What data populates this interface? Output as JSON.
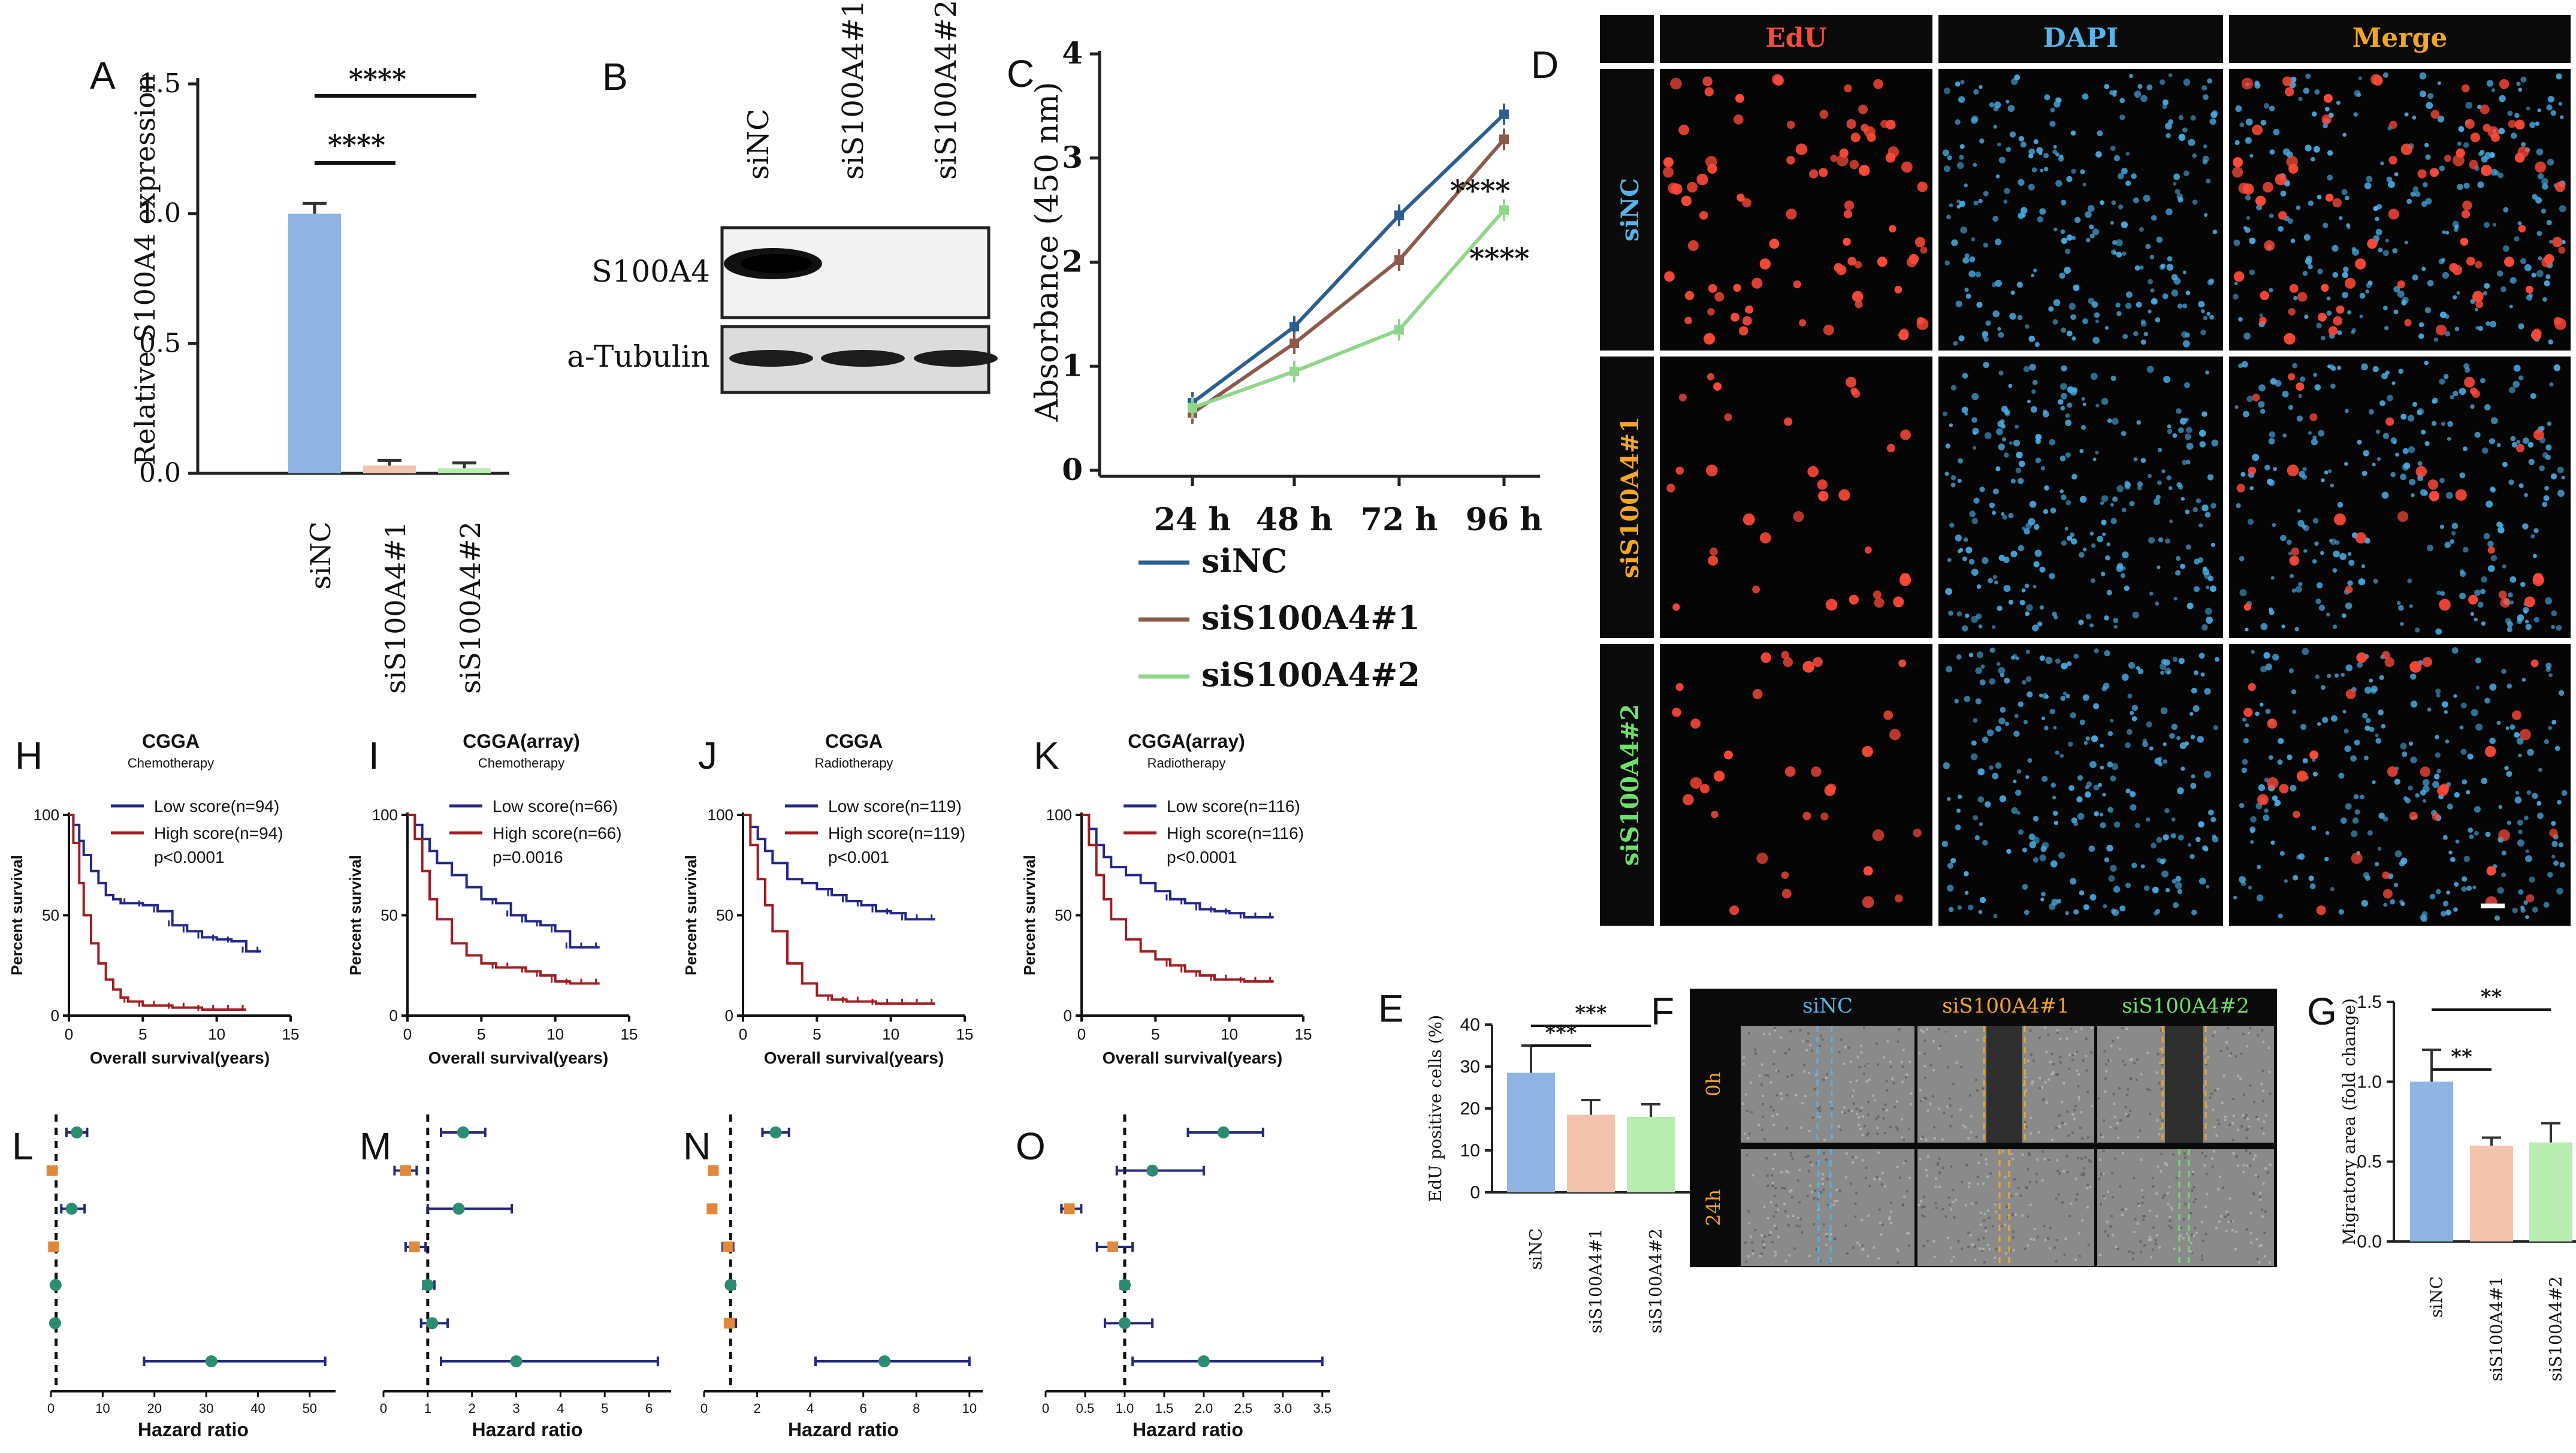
{
  "figure": {
    "colors": {
      "blue": "#2c5f8f",
      "brown": "#8b5a4a",
      "green": "#8fd68a",
      "bar_blue": "#8fb3e3",
      "bar_peach": "#f2c4ae",
      "bar_green": "#b8ecb0",
      "km_low": "#23288a",
      "km_high": "#a11d22",
      "forest_green": "#2b8c72",
      "forest_orange": "#e0893a",
      "img_red": "#ff4a3a",
      "img_blue": "#4aaee8",
      "label_blue": "#56b4e9",
      "label_orange": "#f5a623",
      "label_green": "#6ee06a"
    }
  },
  "panels": {
    "A": {
      "letter": "A",
      "ylabel": "Relative S100A4 expression",
      "yticks": [
        "0.0",
        "0.5",
        "1.0",
        "1.5"
      ],
      "sig": [
        "****",
        "****"
      ]
    },
    "B": {
      "letter": "B",
      "lanes": [
        "siNC",
        "siS100A4#1",
        "siS100A4#2"
      ],
      "rows": [
        "S100A4",
        "a-Tubulin"
      ]
    },
    "C": {
      "letter": "C",
      "ylabel": "Absorbance (450 nm)",
      "yticks": [
        "0",
        "1",
        "2",
        "3",
        "4"
      ],
      "sig": [
        "****",
        "****"
      ],
      "legend": [
        "siNC",
        "siS100A4#1",
        "siS100A4#2"
      ]
    },
    "D": {
      "letter": "D",
      "cols": [
        "EdU",
        "DAPI",
        "Merge"
      ],
      "rows": [
        "siNC",
        "siS100A4#1",
        "siS100A4#2"
      ]
    },
    "E": {
      "letter": "E",
      "ylabel": "EdU positive cells (%)",
      "yticks": [
        "0",
        "10",
        "20",
        "30",
        "40"
      ],
      "sig": [
        "***",
        "***"
      ]
    },
    "F": {
      "letter": "F",
      "cols": [
        "siNC",
        "siS100A4#1",
        "siS100A4#2"
      ],
      "rows": [
        "0h",
        "24h"
      ]
    },
    "G": {
      "letter": "G",
      "ylabel": "Migratory area (fold change)",
      "yticks": [
        "0.0",
        "0.5",
        "1.0",
        "1.5"
      ],
      "sig": [
        "**",
        "**"
      ]
    },
    "km": [
      {
        "letter": "H",
        "title": "CGGA",
        "subtitle": "Chemotherapy",
        "low": "Low score(n=94)",
        "high": "High score(n=94)",
        "p": "p<0.0001"
      },
      {
        "letter": "I",
        "title": "CGGA(array)",
        "subtitle": "Chemotherapy",
        "low": "Low score(n=66)",
        "high": "High score(n=66)",
        "p": "p=0.0016"
      },
      {
        "letter": "J",
        "title": "CGGA",
        "subtitle": "Radiotherapy",
        "low": "Low score(n=119)",
        "high": "High score(n=119)",
        "p": "p<0.001"
      },
      {
        "letter": "K",
        "title": "CGGA(array)",
        "subtitle": "Radiotherapy",
        "low": "Low score(n=116)",
        "high": "High score(n=116)",
        "p": "p<0.0001"
      }
    ],
    "km_common": {
      "ylabel": "Percent survival",
      "xlabel": "Overall survival(years)",
      "yticks": [
        "0",
        "50",
        "100"
      ],
      "xticks": [
        "0",
        "5",
        "10",
        "15"
      ]
    },
    "forest": [
      {
        "letter": "L",
        "xticks": [
          "0",
          "10",
          "20",
          "30",
          "40",
          "50"
        ]
      },
      {
        "letter": "M",
        "xticks": [
          "0",
          "1",
          "2",
          "3",
          "4",
          "5",
          "6"
        ]
      },
      {
        "letter": "N",
        "xticks": [
          "0",
          "2",
          "4",
          "6",
          "8",
          "10"
        ]
      },
      {
        "letter": "O",
        "xticks": [
          "0",
          "0.5",
          "1.0",
          "1.5",
          "2.0",
          "2.5",
          "3.0",
          "3.5"
        ]
      }
    ],
    "forest_common": {
      "xlabel": "Hazard ratio"
    }
  },
  "chart_data": [
    {
      "id": "A",
      "type": "bar",
      "categories": [
        "siNC",
        "siS100A4#1",
        "siS100A4#2"
      ],
      "values": [
        1.0,
        0.03,
        0.02
      ],
      "errors": [
        0.04,
        0.02,
        0.02
      ],
      "ylabel": "Relative S100A4 expression",
      "ylim": [
        0,
        1.5
      ]
    },
    {
      "id": "C",
      "type": "line",
      "x": [
        "24 h",
        "48 h",
        "72 h",
        "96 h"
      ],
      "xlabel": "",
      "ylabel": "Absorbance (450 nm)",
      "ylim": [
        0,
        4
      ],
      "series": [
        {
          "name": "siNC",
          "values": [
            0.65,
            1.38,
            2.45,
            3.42
          ]
        },
        {
          "name": "siS100A4#1",
          "values": [
            0.55,
            1.22,
            2.02,
            3.18
          ]
        },
        {
          "name": "siS100A4#2",
          "values": [
            0.6,
            0.95,
            1.35,
            2.5
          ]
        }
      ]
    },
    {
      "id": "E",
      "type": "bar",
      "categories": [
        "siNC",
        "siS100A4#1",
        "siS100A4#2"
      ],
      "values": [
        28.5,
        18.5,
        18.0
      ],
      "errors": [
        6.5,
        3.5,
        3.0
      ],
      "ylabel": "EdU positive cells (%)",
      "ylim": [
        0,
        40
      ]
    },
    {
      "id": "G",
      "type": "bar",
      "categories": [
        "siNC",
        "siS100A4#1",
        "siS100A4#2"
      ],
      "values": [
        1.0,
        0.6,
        0.62
      ],
      "errors": [
        0.2,
        0.05,
        0.12
      ],
      "ylabel": "Migratory area (fold change)",
      "ylim": [
        0,
        1.5
      ]
    },
    {
      "id": "H",
      "type": "line",
      "xlabel": "Overall survival(years)",
      "ylabel": "Percent survival",
      "xlim": [
        0,
        15
      ],
      "ylim": [
        0,
        100
      ],
      "series": [
        {
          "name": "Low score(n=94)",
          "x": [
            0,
            0.3,
            0.7,
            1,
            1.5,
            2,
            2.5,
            3,
            3.5,
            4,
            5,
            6,
            7,
            8,
            9,
            10,
            11,
            12,
            13
          ],
          "y": [
            100,
            95,
            87,
            80,
            72,
            66,
            60,
            58,
            56,
            56,
            55,
            52,
            45,
            42,
            39,
            38,
            37,
            32,
            32
          ]
        },
        {
          "name": "High score(n=94)",
          "x": [
            0,
            0.3,
            0.7,
            1,
            1.5,
            2,
            2.5,
            3,
            3.5,
            4,
            5,
            6,
            7,
            8,
            9,
            10,
            11,
            12
          ],
          "y": [
            100,
            86,
            66,
            50,
            36,
            26,
            18,
            13,
            9,
            7,
            5,
            5,
            4,
            4,
            3,
            3,
            3,
            3
          ]
        }
      ]
    },
    {
      "id": "I",
      "type": "line",
      "xlabel": "Overall survival(years)",
      "ylabel": "Percent survival",
      "xlim": [
        0,
        15
      ],
      "ylim": [
        0,
        100
      ],
      "series": [
        {
          "name": "Low score(n=66)",
          "x": [
            0,
            0.5,
            1,
            1.5,
            2,
            3,
            4,
            5,
            6,
            7,
            8,
            9,
            10,
            11,
            12,
            13
          ],
          "y": [
            100,
            95,
            88,
            82,
            76,
            70,
            64,
            58,
            56,
            50,
            47,
            45,
            42,
            34,
            34,
            34
          ]
        },
        {
          "name": "High score(n=66)",
          "x": [
            0,
            0.5,
            1,
            1.5,
            2,
            3,
            4,
            5,
            6,
            7,
            8,
            9,
            10,
            11,
            12,
            13
          ],
          "y": [
            100,
            88,
            72,
            58,
            48,
            36,
            30,
            26,
            24,
            24,
            22,
            20,
            17,
            16,
            16,
            16
          ]
        }
      ]
    },
    {
      "id": "J",
      "type": "line",
      "xlabel": "Overall survival(years)",
      "ylabel": "Percent survival",
      "xlim": [
        0,
        15
      ],
      "ylim": [
        0,
        100
      ],
      "series": [
        {
          "name": "Low score(n=119)",
          "x": [
            0,
            0.5,
            1,
            1.5,
            2,
            3,
            4,
            5,
            6,
            7,
            8,
            9,
            10,
            11,
            12,
            13
          ],
          "y": [
            100,
            94,
            88,
            82,
            76,
            68,
            66,
            63,
            60,
            57,
            55,
            52,
            51,
            48,
            48,
            48
          ]
        },
        {
          "name": "High score(n=119)",
          "x": [
            0,
            0.5,
            1,
            1.5,
            2,
            3,
            4,
            5,
            6,
            7,
            8,
            9,
            10,
            11,
            12,
            13
          ],
          "y": [
            100,
            85,
            68,
            55,
            42,
            26,
            16,
            10,
            8,
            7,
            7,
            6,
            6,
            6,
            6,
            6
          ]
        }
      ]
    },
    {
      "id": "K",
      "type": "line",
      "xlabel": "Overall survival(years)",
      "ylabel": "Percent survival",
      "xlim": [
        0,
        15
      ],
      "ylim": [
        0,
        100
      ],
      "series": [
        {
          "name": "Low score(n=116)",
          "x": [
            0,
            0.5,
            1,
            1.5,
            2,
            3,
            4,
            5,
            6,
            7,
            8,
            9,
            10,
            11,
            12,
            13
          ],
          "y": [
            100,
            93,
            85,
            79,
            74,
            70,
            66,
            62,
            58,
            56,
            53,
            52,
            51,
            49,
            49,
            49
          ]
        },
        {
          "name": "High score(n=116)",
          "x": [
            0,
            0.5,
            1,
            1.5,
            2,
            3,
            4,
            5,
            6,
            7,
            8,
            9,
            10,
            11,
            12,
            13
          ],
          "y": [
            100,
            85,
            70,
            58,
            48,
            38,
            32,
            28,
            25,
            22,
            20,
            18,
            18,
            17,
            17,
            17
          ]
        }
      ]
    },
    {
      "id": "L",
      "type": "scatter",
      "xlabel": "Hazard ratio",
      "reference": 1,
      "xlim": [
        0,
        55
      ],
      "points": [
        {
          "hr": 5,
          "lo": 3,
          "hi": 7,
          "group": "green"
        },
        {
          "hr": 0.2,
          "lo": 0.1,
          "hi": 0.4,
          "group": "orange"
        },
        {
          "hr": 4,
          "lo": 2,
          "hi": 6.5,
          "group": "green"
        },
        {
          "hr": 0.5,
          "lo": 0.3,
          "hi": 0.8,
          "group": "orange"
        },
        {
          "hr": 0.9,
          "lo": 0.7,
          "hi": 1.1,
          "group": "green"
        },
        {
          "hr": 0.8,
          "lo": 0.6,
          "hi": 1.0,
          "group": "green"
        },
        {
          "hr": 31,
          "lo": 18,
          "hi": 53,
          "group": "green"
        }
      ]
    },
    {
      "id": "M",
      "type": "scatter",
      "xlabel": "Hazard ratio",
      "reference": 1,
      "xlim": [
        0,
        6.5
      ],
      "points": [
        {
          "hr": 1.8,
          "lo": 1.3,
          "hi": 2.3,
          "group": "green"
        },
        {
          "hr": 0.5,
          "lo": 0.25,
          "hi": 0.75,
          "group": "orange"
        },
        {
          "hr": 1.7,
          "lo": 1.0,
          "hi": 2.9,
          "group": "green"
        },
        {
          "hr": 0.7,
          "lo": 0.5,
          "hi": 0.95,
          "group": "orange"
        },
        {
          "hr": 1.0,
          "lo": 0.9,
          "hi": 1.15,
          "group": "green"
        },
        {
          "hr": 1.1,
          "lo": 0.85,
          "hi": 1.45,
          "group": "green"
        },
        {
          "hr": 3.0,
          "lo": 1.3,
          "hi": 6.2,
          "group": "green"
        }
      ]
    },
    {
      "id": "N",
      "type": "scatter",
      "xlabel": "Hazard ratio",
      "reference": 1,
      "xlim": [
        0,
        10.5
      ],
      "points": [
        {
          "hr": 2.7,
          "lo": 2.2,
          "hi": 3.2,
          "group": "green"
        },
        {
          "hr": 0.35,
          "lo": 0.25,
          "hi": 0.45,
          "group": "orange"
        },
        {
          "hr": 0.3,
          "lo": 0.2,
          "hi": 0.4,
          "group": "orange"
        },
        {
          "hr": 0.9,
          "lo": 0.7,
          "hi": 1.1,
          "group": "orange"
        },
        {
          "hr": 1.0,
          "lo": 0.9,
          "hi": 1.15,
          "group": "green"
        },
        {
          "hr": 0.95,
          "lo": 0.8,
          "hi": 1.2,
          "group": "orange"
        },
        {
          "hr": 6.8,
          "lo": 4.2,
          "hi": 10.0,
          "group": "green"
        }
      ]
    },
    {
      "id": "O",
      "type": "scatter",
      "xlabel": "Hazard ratio",
      "reference": 1,
      "xlim": [
        0,
        3.6
      ],
      "points": [
        {
          "hr": 2.25,
          "lo": 1.8,
          "hi": 2.75,
          "group": "green"
        },
        {
          "hr": 1.35,
          "lo": 0.9,
          "hi": 2.0,
          "group": "green"
        },
        {
          "hr": 0.3,
          "lo": 0.2,
          "hi": 0.45,
          "group": "orange"
        },
        {
          "hr": 0.85,
          "lo": 0.65,
          "hi": 1.1,
          "group": "orange"
        },
        {
          "hr": 1.0,
          "lo": 0.95,
          "hi": 1.05,
          "group": "green"
        },
        {
          "hr": 1.0,
          "lo": 0.75,
          "hi": 1.35,
          "group": "green"
        },
        {
          "hr": 2.0,
          "lo": 1.1,
          "hi": 3.5,
          "group": "green"
        }
      ]
    }
  ]
}
